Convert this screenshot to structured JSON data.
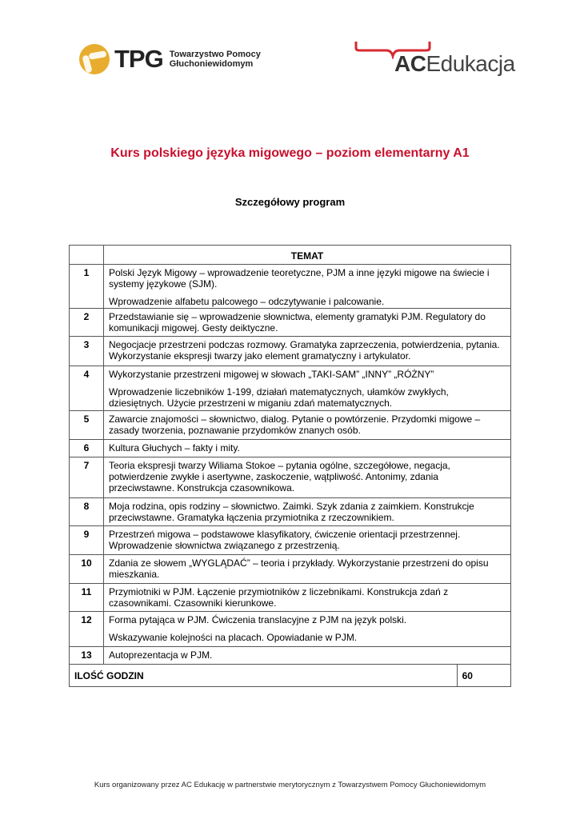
{
  "logos": {
    "tpg": {
      "abbr": "TPG",
      "line1": "Towarzystwo Pomocy",
      "line2": "Głuchoniewidomym",
      "color": "#e8ad2e"
    },
    "ac": {
      "bold": "AC",
      "rest": "Edukacja",
      "accent": "#d7282f"
    }
  },
  "title": "Kurs polskiego języka migowego – poziom elementarny A1",
  "subtitle": "Szczegółowy program",
  "table": {
    "header": "TEMAT",
    "rows": [
      {
        "num": "1",
        "paras": [
          "Polski Język Migowy – wprowadzenie teoretyczne, PJM a inne języki migowe na świecie i systemy językowe (SJM).",
          "Wprowadzenie alfabetu palcowego – odczytywanie i palcowanie."
        ]
      },
      {
        "num": "2",
        "paras": [
          "Przedstawianie się – wprowadzenie słownictwa, elementy gramatyki PJM. Regulatory do komunikacji migowej. Gesty deiktyczne."
        ]
      },
      {
        "num": "3",
        "paras": [
          "Negocjacje przestrzeni podczas rozmowy. Gramatyka zaprzeczenia, potwierdzenia, pytania. Wykorzystanie ekspresji twarzy jako element gramatyczny i artykulator."
        ]
      },
      {
        "num": "4",
        "paras": [
          "Wykorzystanie przestrzeni migowej w słowach „TAKI-SAM” „INNY” „RÓŻNY”",
          "Wprowadzenie liczebników 1-199, działań matematycznych, ułamków zwykłych, dziesiętnych. Użycie przestrzeni w miganiu zdań matematycznych."
        ]
      },
      {
        "num": "5",
        "paras": [
          "Zawarcie znajomości – słownictwo, dialog. Pytanie o powtórzenie. Przydomki migowe – zasady tworzenia, poznawanie przydomków znanych osób."
        ]
      },
      {
        "num": "6",
        "paras": [
          "Kultura Głuchych – fakty i mity."
        ]
      },
      {
        "num": "7",
        "paras": [
          "Teoria ekspresji twarzy Wiliama Stokoe – pytania ogólne, szczegółowe, negacja, potwierdzenie zwykłe i asertywne, zaskoczenie, wątpliwość. Antonimy, zdania przeciwstawne. Konstrukcja czasownikowa."
        ]
      },
      {
        "num": "8",
        "paras": [
          "Moja rodzina, opis rodziny – słownictwo. Zaimki. Szyk zdania z zaimkiem. Konstrukcje przeciwstawne. Gramatyka łączenia przymiotnika z rzeczownikiem."
        ]
      },
      {
        "num": "9",
        "paras": [
          "Przestrzeń migowa – podstawowe klasyfikatory, ćwiczenie orientacji przestrzennej. Wprowadzenie słownictwa związanego z przestrzenią."
        ]
      },
      {
        "num": "10",
        "paras": [
          "Zdania ze słowem „WYGLĄDAĆ” – teoria i przykłady. Wykorzystanie przestrzeni do opisu mieszkania."
        ]
      },
      {
        "num": "11",
        "paras": [
          "Przymiotniki w PJM. Łączenie przymiotników z liczebnikami. Konstrukcja zdań z czasownikami. Czasowniki kierunkowe."
        ]
      },
      {
        "num": "12",
        "paras": [
          "Forma pytająca w PJM. Ćwiczenia translacyjne z PJM na język polski.",
          "Wskazywanie kolejności na placach. Opowiadanie w PJM."
        ]
      },
      {
        "num": "13",
        "paras": [
          "Autoprezentacja w PJM."
        ]
      }
    ],
    "total_label": "ILOŚĆ GODZIN",
    "total_value": "60"
  },
  "footer": "Kurs organizowany przez AC Edukację w partnerstwie merytorycznym z Towarzystwem Pomocy Głuchoniewidomym"
}
